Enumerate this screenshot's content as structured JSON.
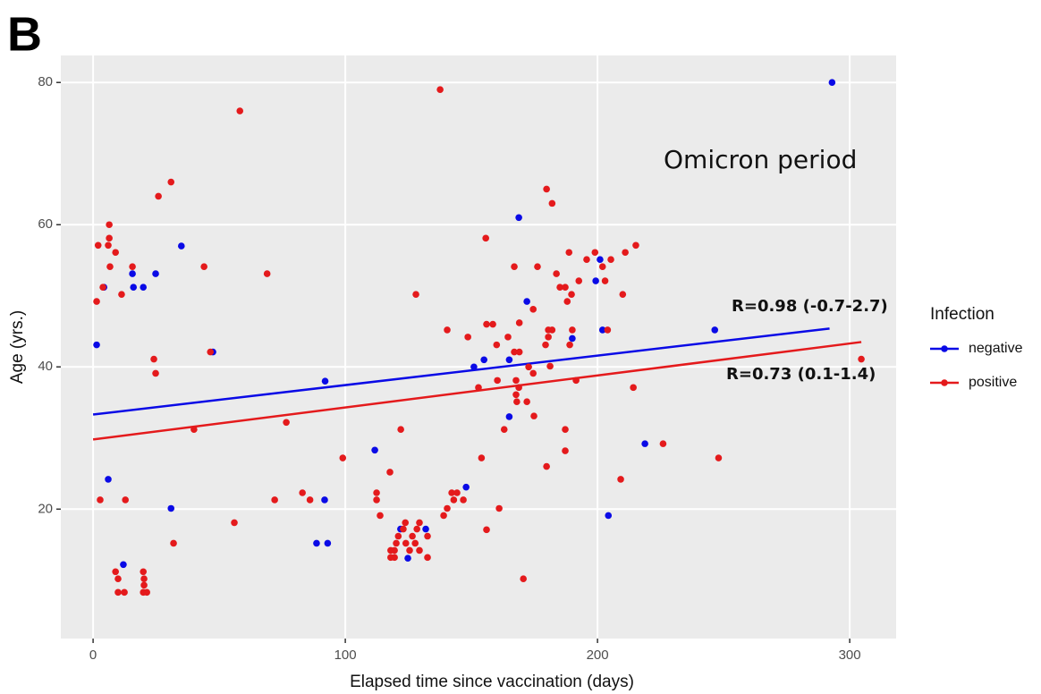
{
  "chart_data": {
    "type": "scatter",
    "panel_label": "B",
    "annotation": "Omicron period",
    "x_label": "Elapsed time since vaccination (days)",
    "y_label": "Age (yrs.)",
    "legend_title": "Infection",
    "xlim": [
      -12.8,
      318.4
    ],
    "ylim": [
      1.8,
      83.8
    ],
    "xticks": [
      0,
      100,
      200,
      300
    ],
    "yticks": [
      20,
      40,
      60,
      80
    ],
    "grid": true,
    "series": [
      {
        "name": "negative",
        "color": "#0a0ae6",
        "fit_label": "R=0.98 (-0.7-2.7)",
        "fit_x": [
          0,
          292
        ],
        "fit_y": [
          33.3,
          45.4
        ],
        "x": [
          1.4,
          4.3,
          6,
          12,
          15.6,
          16,
          19.9,
          24.8,
          30.9,
          35,
          47.5,
          92,
          91.8,
          88.6,
          93,
          111.7,
          121.9,
          124.8,
          131.9,
          147.9,
          151,
          155,
          165,
          165,
          168.8,
          172,
          190,
          199.3,
          201,
          202,
          204.3,
          218.8,
          246.5,
          293
        ],
        "values": [
          43.1,
          51.2,
          24.2,
          12.2,
          53.1,
          51.2,
          51.2,
          53.1,
          20.1,
          57,
          42.1,
          38,
          21.3,
          15.2,
          15.2,
          28.3,
          17.2,
          13.1,
          17.2,
          23.1,
          40,
          41,
          33,
          41,
          61,
          49.2,
          44,
          52.1,
          55.1,
          45.2,
          19.1,
          29.2,
          45.2,
          80
        ]
      },
      {
        "name": "positive",
        "color": "#e41a1c",
        "fit_label": "R=0.73 (0.1-1.4)",
        "fit_x": [
          0,
          304.6
        ],
        "fit_y": [
          29.8,
          43.5
        ],
        "x": [
          1.4,
          2,
          2.8,
          3.9,
          6,
          6.4,
          6.4,
          6.7,
          8.9,
          8.9,
          9.9,
          9.9,
          11.3,
          12.4,
          12.8,
          15.6,
          19.9,
          20.2,
          20.2,
          19.9,
          21.3,
          24.1,
          24.8,
          25.9,
          30.9,
          31.9,
          40,
          44,
          46.5,
          56,
          58.2,
          69,
          72,
          76.6,
          83,
          86,
          99,
          112.4,
          112.4,
          113.8,
          117.7,
          118,
          118,
          119.5,
          119.5,
          120.2,
          121,
          122,
          123,
          123.8,
          124,
          125.5,
          126.6,
          127.7,
          128,
          128.4,
          129.4,
          129.4,
          132.6,
          132.6,
          137.6,
          139,
          140.4,
          140.4,
          142.2,
          143,
          144.3,
          146.8,
          148.6,
          152.8,
          154,
          155.7,
          156,
          156,
          158.5,
          160,
          160.3,
          161,
          163,
          164.5,
          167,
          167,
          167.7,
          167.7,
          168,
          168.8,
          169,
          169,
          170.6,
          172,
          172.7,
          174.5,
          174.5,
          174.8,
          176.2,
          179.4,
          179.8,
          179.8,
          180.5,
          180.5,
          181.2,
          182,
          182,
          183.7,
          185.1,
          187.2,
          187.2,
          187.2,
          188,
          188.7,
          189,
          189.7,
          190,
          191.5,
          192.6,
          195.7,
          199,
          202,
          203,
          204,
          205.3,
          209.2,
          210,
          211,
          214.2,
          215.2,
          226,
          248,
          304.6
        ],
        "values": [
          49.2,
          57.1,
          21.3,
          51.2,
          57.1,
          58.1,
          60,
          54.1,
          56.1,
          11.2,
          10.2,
          8.3,
          50.2,
          8.3,
          21.3,
          54.1,
          11.2,
          10.2,
          9.3,
          8.3,
          8.3,
          41.1,
          39.1,
          64,
          66,
          15.2,
          31.2,
          54.1,
          42.1,
          18.1,
          76,
          53.1,
          21.3,
          32.2,
          22.3,
          21.3,
          27.2,
          21.3,
          22.3,
          19.1,
          25.2,
          14.2,
          13.2,
          14.2,
          13.2,
          15.2,
          16.2,
          31.2,
          17.2,
          18.1,
          15.2,
          14.2,
          16.2,
          15.2,
          50.2,
          17.2,
          14.2,
          18.1,
          16.2,
          13.2,
          79,
          19.1,
          45.2,
          20.1,
          22.3,
          21.3,
          22.3,
          21.3,
          44.2,
          37.1,
          27.2,
          58.1,
          17.1,
          46,
          46,
          43.1,
          38.1,
          20.1,
          31.2,
          44.2,
          54.1,
          42.1,
          38.1,
          36.1,
          35.1,
          37.1,
          46.2,
          42.1,
          10.2,
          35.1,
          40,
          39.1,
          48.1,
          33.1,
          54.1,
          43.1,
          26,
          65,
          45.2,
          44.2,
          40.1,
          45.2,
          63,
          53.1,
          51.2,
          51.2,
          31.2,
          28.2,
          49.2,
          56.1,
          43.1,
          50.2,
          45.2,
          38.1,
          52.1,
          55.1,
          56.1,
          54.1,
          52.1,
          45.2,
          55.1,
          24.2,
          50.2,
          56.1,
          37.1,
          57.1,
          29.2,
          27.2,
          41.1
        ]
      }
    ]
  }
}
